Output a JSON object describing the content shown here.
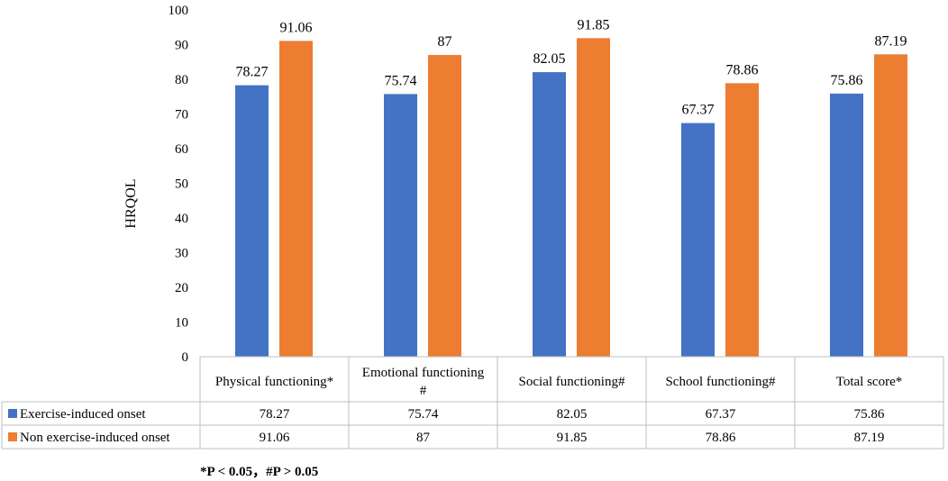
{
  "chart_data": {
    "type": "bar",
    "title": "",
    "xlabel": "",
    "ylabel": "HRQOL",
    "ylim": [
      0,
      100
    ],
    "yticks": [
      0,
      10,
      20,
      30,
      40,
      50,
      60,
      70,
      80,
      90,
      100
    ],
    "grid": false,
    "legend": "data-table-left",
    "categories": [
      "Physical functioning*",
      "Emotional functioning #",
      "Social functioning#",
      "School functioning#",
      "Total score*"
    ],
    "category_lines": [
      [
        "Physical functioning*"
      ],
      [
        "Emotional functioning",
        "#"
      ],
      [
        "Social functioning#"
      ],
      [
        "School functioning#"
      ],
      [
        "Total score*"
      ]
    ],
    "series": [
      {
        "name": "Exercise-induced onset",
        "color": "#4472C4",
        "values": [
          78.27,
          75.74,
          82.05,
          67.37,
          75.86
        ],
        "labels": [
          "78.27",
          "75.74",
          "82.05",
          "67.37",
          "75.86"
        ]
      },
      {
        "name": "Non exercise-induced onset",
        "color": "#ED7D31",
        "values": [
          91.06,
          87,
          91.85,
          78.86,
          87.19
        ],
        "labels": [
          "91.06",
          "87",
          "91.85",
          "78.86",
          "87.19"
        ]
      }
    ]
  },
  "footnote": "*P < 0.05，#P > 0.05"
}
